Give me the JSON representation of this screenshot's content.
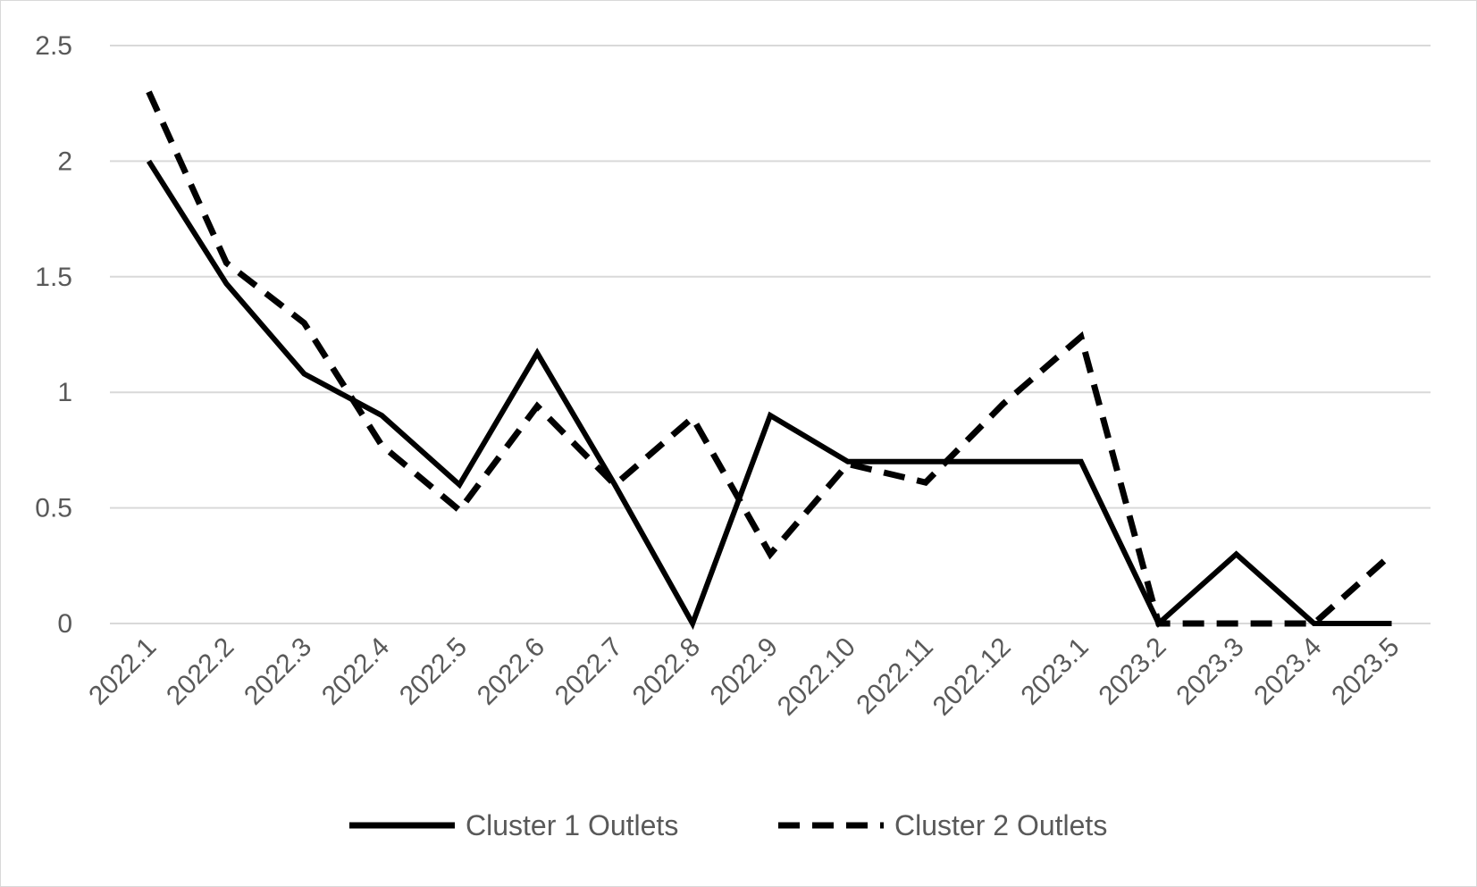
{
  "chart_data": {
    "type": "line",
    "title": "",
    "xlabel": "",
    "ylabel": "",
    "categories": [
      "2022.1",
      "2022.2",
      "2022.3",
      "2022.4",
      "2022.5",
      "2022.6",
      "2022.7",
      "2022.8",
      "2022.9",
      "2022.10",
      "2022.11",
      "2022.12",
      "2023.1",
      "2023.2",
      "2023.3",
      "2023.4",
      "2023.5"
    ],
    "ylim": [
      0,
      2.5
    ],
    "yticks": [
      "0",
      "0.5",
      "1",
      "1.5",
      "2",
      "2.5"
    ],
    "grid": "horizontal",
    "legend_position": "bottom",
    "series": [
      {
        "name": "Cluster 1 Outlets",
        "style": "solid",
        "color": "#000000",
        "values": [
          2.0,
          1.47,
          1.08,
          0.9,
          0.6,
          1.17,
          0.6,
          0.0,
          0.9,
          0.7,
          0.7,
          0.7,
          0.7,
          0.0,
          0.3,
          0.0,
          0.0
        ]
      },
      {
        "name": "Cluster 2 Outlets",
        "style": "dashed",
        "color": "#000000",
        "values": [
          2.3,
          1.56,
          1.3,
          0.77,
          0.49,
          0.94,
          0.6,
          0.89,
          0.3,
          0.69,
          0.61,
          0.95,
          1.24,
          0.0,
          0.0,
          0.0,
          0.3
        ]
      }
    ]
  }
}
